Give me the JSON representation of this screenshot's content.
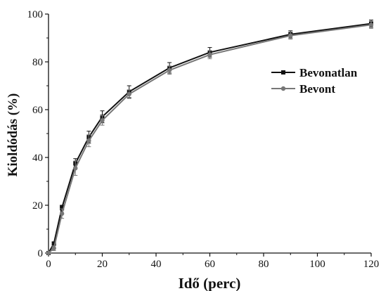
{
  "chart_data": {
    "type": "line",
    "xlabel": "Idő (perc)",
    "ylabel": "Kioldódás (%)",
    "xlim": [
      0,
      120
    ],
    "ylim": [
      0,
      100
    ],
    "xticks": [
      0,
      20,
      40,
      60,
      80,
      100,
      120
    ],
    "yticks": [
      0,
      20,
      40,
      60,
      80,
      100
    ],
    "grid": false,
    "legend_position": "right",
    "x": [
      0,
      2,
      5,
      10,
      15,
      20,
      30,
      45,
      60,
      90,
      120
    ],
    "series": [
      {
        "name": "Bevonatlan",
        "marker": "square",
        "color": "#111111",
        "values": [
          0,
          4,
          19,
          37.5,
          48.5,
          57,
          67.5,
          77.5,
          84,
          91.5,
          96
        ],
        "errors": [
          0,
          0.5,
          1,
          2,
          2.5,
          2.5,
          2.5,
          2.2,
          2,
          1.5,
          1.5
        ]
      },
      {
        "name": "Bevont",
        "marker": "circle",
        "color": "#777777",
        "values": [
          0,
          2,
          16.5,
          35.5,
          47,
          55.5,
          66.5,
          76.5,
          83,
          91,
          95.5
        ],
        "errors": [
          0,
          1,
          2,
          3,
          2.5,
          2,
          1.8,
          1.7,
          1.7,
          1.5,
          1.5
        ]
      }
    ]
  }
}
